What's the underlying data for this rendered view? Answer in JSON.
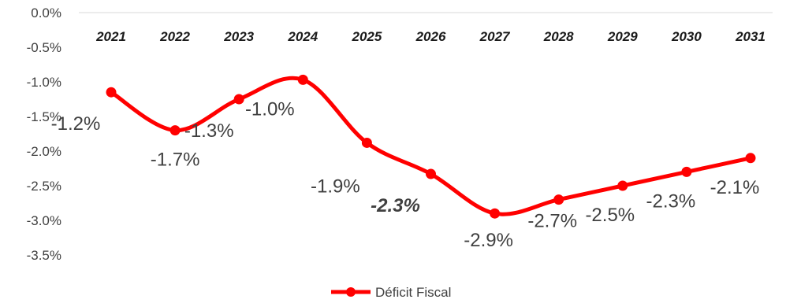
{
  "chart_data": {
    "type": "line",
    "x": [
      "2021",
      "2022",
      "2023",
      "2024",
      "2025",
      "2026",
      "2027",
      "2028",
      "2029",
      "2030",
      "2031"
    ],
    "series": [
      {
        "name": "Déficit Fiscal",
        "color": "#ff0000",
        "values": [
          -1.15,
          -1.7,
          -1.25,
          -0.97,
          -1.88,
          -2.33,
          -2.9,
          -2.7,
          -2.5,
          -2.3,
          -2.1
        ],
        "labels": [
          "-1.2%",
          "-1.7%",
          "-1.3%",
          "-1.0%",
          "-1.9%",
          "-2.3%",
          "-2.9%",
          "-2.7%",
          "-2.5%",
          "-2.3%",
          "-2.1%"
        ],
        "emphasized_label_index": 5
      }
    ],
    "ylim": [
      -3.5,
      0
    ],
    "yticks": [
      "0.0%",
      "-0.5%",
      "-1.0%",
      "-1.5%",
      "-2.0%",
      "-2.5%",
      "-3.0%",
      "-3.5%"
    ],
    "xaxis_position": "top",
    "grid": false,
    "legend": "bottom-center",
    "smooth": true
  }
}
